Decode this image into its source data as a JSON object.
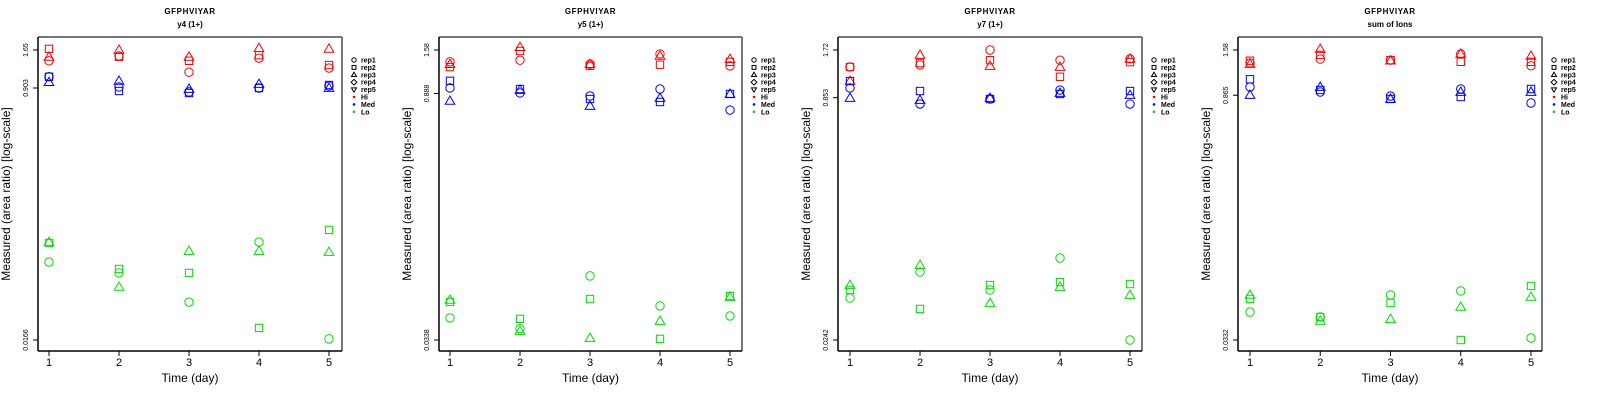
{
  "figure": {
    "peptide": "GFPHVIYAR"
  },
  "legend": {
    "shapes": [
      {
        "label": "rep1",
        "shape": "circle"
      },
      {
        "label": "rep2",
        "shape": "square"
      },
      {
        "label": "rep3",
        "shape": "triangle-up"
      },
      {
        "label": "rep4",
        "shape": "diamond"
      },
      {
        "label": "rep5",
        "shape": "triangle-down"
      }
    ],
    "groups": [
      {
        "label": "Hi",
        "color": "#ff0000"
      },
      {
        "label": "Med",
        "color": "#0000ff"
      },
      {
        "label": "Lo",
        "color": "#00dd00"
      }
    ]
  },
  "chart_data": [
    {
      "type": "scatter",
      "title": "GFPHVIYAR",
      "subtitle": "y4 (1+)",
      "xlabel": "Time (day)",
      "ylabel": "Measured (area ratio) [log-scale]",
      "yscale": "log",
      "x_ticks": [
        1,
        2,
        3,
        4,
        5
      ],
      "y_ticks": [
        1.65,
        0.903,
        0.0166
      ],
      "y_tick_labels": [
        "1.65",
        "0.903",
        "0.0166"
      ],
      "ylim": [
        0.0152,
        2.05
      ],
      "xlim": [
        0.83,
        5.17
      ],
      "grid": false,
      "legend_position": "right",
      "series": [
        {
          "group": "Hi",
          "rep": "rep1",
          "x": [
            1,
            2,
            3,
            4,
            5
          ],
          "y": [
            1.39,
            1.5,
            1.16,
            1.45,
            1.24
          ]
        },
        {
          "group": "Hi",
          "rep": "rep2",
          "x": [
            1,
            2,
            3,
            4,
            5
          ],
          "y": [
            1.68,
            1.48,
            1.39,
            1.52,
            1.3
          ]
        },
        {
          "group": "Hi",
          "rep": "rep3",
          "x": [
            1,
            2,
            3,
            4,
            5
          ],
          "y": [
            1.48,
            1.65,
            1.48,
            1.7,
            1.68
          ]
        },
        {
          "group": "Med",
          "rep": "rep1",
          "x": [
            1,
            2,
            3,
            4,
            5
          ],
          "y": [
            1.08,
            0.918,
            0.848,
            0.903,
            0.932
          ]
        },
        {
          "group": "Med",
          "rep": "rep2",
          "x": [
            1,
            2,
            3,
            4,
            5
          ],
          "y": [
            1.08,
            0.861,
            0.834,
            0.903,
            0.947
          ]
        },
        {
          "group": "Med",
          "rep": "rep3",
          "x": [
            1,
            2,
            3,
            4,
            5
          ],
          "y": [
            0.99,
            1.01,
            0.889,
            0.962,
            0.903
          ]
        },
        {
          "group": "Lo",
          "rep": "rep1",
          "x": [
            1,
            2,
            3,
            4,
            5
          ],
          "y": [
            0.0572,
            0.0481,
            0.0303,
            0.0785,
            0.0169
          ]
        },
        {
          "group": "Lo",
          "rep": "rep2",
          "x": [
            1,
            2,
            3,
            4,
            5
          ],
          "y": [
            0.0773,
            0.0512,
            0.0481,
            0.0201,
            0.0951
          ]
        },
        {
          "group": "Lo",
          "rep": "rep3",
          "x": [
            1,
            2,
            3,
            4,
            5
          ],
          "y": [
            0.0785,
            0.0385,
            0.0681,
            0.0681,
            0.067
          ]
        }
      ]
    },
    {
      "type": "scatter",
      "title": "GFPHVIYAR",
      "subtitle": "y5 (1+)",
      "xlabel": "Time (day)",
      "ylabel": "Measured (area ratio) [log-scale]",
      "yscale": "log",
      "x_ticks": [
        1,
        2,
        3,
        4,
        5
      ],
      "y_ticks": [
        1.58,
        0.888,
        0.0338
      ],
      "y_tick_labels": [
        "1.58",
        "0.888",
        "0.0338"
      ],
      "ylim": [
        0.0316,
        1.85
      ],
      "xlim": [
        0.83,
        5.17
      ],
      "grid": false,
      "legend_position": "right",
      "series": [
        {
          "group": "Hi",
          "rep": "rep1",
          "x": [
            1,
            2,
            3,
            4,
            5
          ],
          "y": [
            1.35,
            1.38,
            1.31,
            1.5,
            1.28
          ]
        },
        {
          "group": "Hi",
          "rep": "rep2",
          "x": [
            1,
            2,
            3,
            4,
            5
          ],
          "y": [
            1.26,
            1.56,
            1.28,
            1.3,
            1.35
          ]
        },
        {
          "group": "Hi",
          "rep": "rep3",
          "x": [
            1,
            2,
            3,
            4,
            5
          ],
          "y": [
            1.31,
            1.64,
            1.31,
            1.46,
            1.4
          ]
        },
        {
          "group": "Med",
          "rep": "rep1",
          "x": [
            1,
            2,
            3,
            4,
            5
          ],
          "y": [
            0.955,
            0.894,
            0.859,
            0.942,
            0.713
          ]
        },
        {
          "group": "Med",
          "rep": "rep2",
          "x": [
            1,
            2,
            3,
            4,
            5
          ],
          "y": [
            1.05,
            0.942,
            0.825,
            0.793,
            0.882
          ]
        },
        {
          "group": "Med",
          "rep": "rep3",
          "x": [
            1,
            2,
            3,
            4,
            5
          ],
          "y": [
            0.804,
            0.93,
            0.752,
            0.836,
            0.882
          ]
        },
        {
          "group": "Lo",
          "rep": "rep1",
          "x": [
            1,
            2,
            3,
            4,
            5
          ],
          "y": [
            0.0453,
            0.0392,
            0.0791,
            0.0531,
            0.0465
          ]
        },
        {
          "group": "Lo",
          "rep": "rep2",
          "x": [
            1,
            2,
            3,
            4,
            5
          ],
          "y": [
            0.056,
            0.0447,
            0.0582,
            0.0343,
            0.0606
          ]
        },
        {
          "group": "Lo",
          "rep": "rep3",
          "x": [
            1,
            2,
            3,
            4,
            5
          ],
          "y": [
            0.0575,
            0.0381,
            0.0347,
            0.0435,
            0.0598
          ]
        }
      ]
    },
    {
      "type": "scatter",
      "title": "GFPHVIYAR",
      "subtitle": "y7 (1+)",
      "xlabel": "Time (day)",
      "ylabel": "Measured (area ratio) [log-scale]",
      "yscale": "log",
      "x_ticks": [
        1,
        2,
        3,
        4,
        5
      ],
      "y_ticks": [
        1.72,
        0.853,
        0.0242
      ],
      "y_tick_labels": [
        "1.72",
        "0.853",
        "0.0242"
      ],
      "ylim": [
        0.0225,
        2.1
      ],
      "xlim": [
        0.83,
        5.17
      ],
      "grid": false,
      "legend_position": "right",
      "series": [
        {
          "group": "Hi",
          "rep": "rep1",
          "x": [
            1,
            2,
            3,
            4,
            5
          ],
          "y": [
            1.34,
            1.38,
            1.72,
            1.48,
            1.51
          ]
        },
        {
          "group": "Hi",
          "rep": "rep2",
          "x": [
            1,
            2,
            3,
            4,
            5
          ],
          "y": [
            1.34,
            1.42,
            1.48,
            1.16,
            1.44
          ]
        },
        {
          "group": "Hi",
          "rep": "rep3",
          "x": [
            1,
            2,
            3,
            4,
            5
          ],
          "y": [
            1.09,
            1.6,
            1.36,
            1.34,
            1.51
          ]
        },
        {
          "group": "Med",
          "rep": "rep1",
          "x": [
            1,
            2,
            3,
            4,
            5
          ],
          "y": [
            0.984,
            0.777,
            0.837,
            0.955,
            0.777
          ]
        },
        {
          "group": "Med",
          "rep": "rep2",
          "x": [
            1,
            2,
            3,
            4,
            5
          ],
          "y": [
            1.09,
            0.941,
            0.837,
            0.901,
            0.941
          ]
        },
        {
          "group": "Med",
          "rep": "rep3",
          "x": [
            1,
            2,
            3,
            4,
            5
          ],
          "y": [
            0.849,
            0.824,
            0.849,
            0.914,
            0.887
          ]
        },
        {
          "group": "Lo",
          "rep": "rep1",
          "x": [
            1,
            2,
            3,
            4,
            5
          ],
          "y": [
            0.0449,
            0.0658,
            0.0505,
            0.0808,
            0.0242
          ]
        },
        {
          "group": "Lo",
          "rep": "rep2",
          "x": [
            1,
            2,
            3,
            4,
            5
          ],
          "y": [
            0.0505,
            0.0382,
            0.0543,
            0.0567,
            0.0551
          ]
        },
        {
          "group": "Lo",
          "rep": "rep3",
          "x": [
            1,
            2,
            3,
            4,
            5
          ],
          "y": [
            0.0543,
            0.0729,
            0.0417,
            0.0527,
            0.0469
          ]
        }
      ]
    },
    {
      "type": "scatter",
      "title": "GFPHVIYAR",
      "subtitle": "sum of Ions",
      "xlabel": "Time (day)",
      "ylabel": "Measured (area ratio) [log-scale]",
      "yscale": "log",
      "x_ticks": [
        1,
        2,
        3,
        4,
        5
      ],
      "y_ticks": [
        1.58,
        0.865,
        0.0332
      ],
      "y_tick_labels": [
        "1.58",
        "0.865",
        "0.0332"
      ],
      "ylim": [
        0.031,
        1.85
      ],
      "xlim": [
        0.83,
        5.17
      ],
      "grid": false,
      "legend_position": "right",
      "series": [
        {
          "group": "Hi",
          "rep": "rep1",
          "x": [
            1,
            2,
            3,
            4,
            5
          ],
          "y": [
            1.33,
            1.4,
            1.38,
            1.5,
            1.28
          ]
        },
        {
          "group": "Hi",
          "rep": "rep2",
          "x": [
            1,
            2,
            3,
            4,
            5
          ],
          "y": [
            1.37,
            1.48,
            1.38,
            1.35,
            1.35
          ]
        },
        {
          "group": "Hi",
          "rep": "rep3",
          "x": [
            1,
            2,
            3,
            4,
            5
          ],
          "y": [
            1.31,
            1.6,
            1.37,
            1.5,
            1.46
          ]
        },
        {
          "group": "Med",
          "rep": "rep1",
          "x": [
            1,
            2,
            3,
            4,
            5
          ],
          "y": [
            0.965,
            0.903,
            0.856,
            0.94,
            0.78
          ]
        },
        {
          "group": "Med",
          "rep": "rep2",
          "x": [
            1,
            2,
            3,
            4,
            5
          ],
          "y": [
            1.07,
            0.928,
            0.823,
            0.845,
            0.94
          ]
        },
        {
          "group": "Med",
          "rep": "rep3",
          "x": [
            1,
            2,
            3,
            4,
            5
          ],
          "y": [
            0.868,
            0.965,
            0.823,
            0.903,
            0.903
          ]
        },
        {
          "group": "Lo",
          "rep": "rep1",
          "x": [
            1,
            2,
            3,
            4,
            5
          ],
          "y": [
            0.0482,
            0.0451,
            0.0605,
            0.0638,
            0.0341
          ]
        },
        {
          "group": "Lo",
          "rep": "rep2",
          "x": [
            1,
            2,
            3,
            4,
            5
          ],
          "y": [
            0.0574,
            0.0451,
            0.0544,
            0.0332,
            0.0682
          ]
        },
        {
          "group": "Lo",
          "rep": "rep3",
          "x": [
            1,
            2,
            3,
            4,
            5
          ],
          "y": [
            0.0605,
            0.0428,
            0.0439,
            0.0516,
            0.0589
          ]
        }
      ]
    }
  ]
}
